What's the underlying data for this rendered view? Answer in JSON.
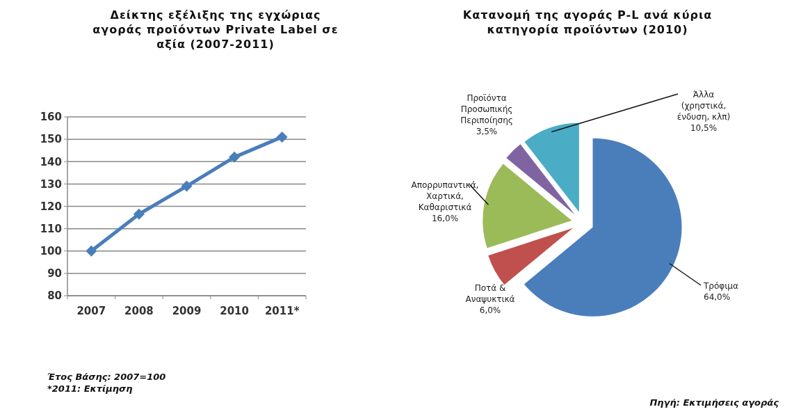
{
  "chart_data": [
    {
      "type": "line",
      "title": "Δείκτης εξέλιξης της εγχώριας αγοράς προϊόντων Private Label σε αξία (2007-2011)",
      "categories": [
        "2007",
        "2008",
        "2009",
        "2010",
        "2011*"
      ],
      "series": [
        {
          "color": "#4a7ebb",
          "values": [
            100,
            116.5,
            129,
            142,
            151
          ]
        }
      ],
      "ylim": [
        80,
        160
      ],
      "yticks": [
        80,
        90,
        100,
        110,
        120,
        130,
        140,
        150,
        160
      ],
      "grid": "y",
      "marker": "diamond",
      "line_style": "solid",
      "annotations": [
        "Έτος Βάσης: 2007=100",
        "*2011: Εκτίμηση"
      ]
    },
    {
      "type": "pie",
      "title": "Κατανομή της αγοράς P-L ανά κύρια κατηγορία προϊόντων (2010)",
      "categories": [
        "Τρόφιμα",
        "Ποτά & Αναψυκτικά",
        "Απορρυπαντικά, Χαρτικά, Καθαριστικά",
        "Προϊόντα Προσωπικής Περιποίησης",
        "Άλλα (χρηστικά, ένδυση, κλπ)"
      ],
      "values": [
        64.0,
        6.0,
        16.0,
        3.5,
        10.5
      ],
      "value_labels": [
        "64,0%",
        "6,0%",
        "16,0%",
        "3,5%",
        "10,5%"
      ],
      "colors": [
        "#4a7ebb",
        "#c0504d",
        "#9bbb59",
        "#8064a2",
        "#4bacc6"
      ],
      "annotations": [
        "Πηγή: Εκτιμήσεις αγοράς"
      ]
    }
  ]
}
